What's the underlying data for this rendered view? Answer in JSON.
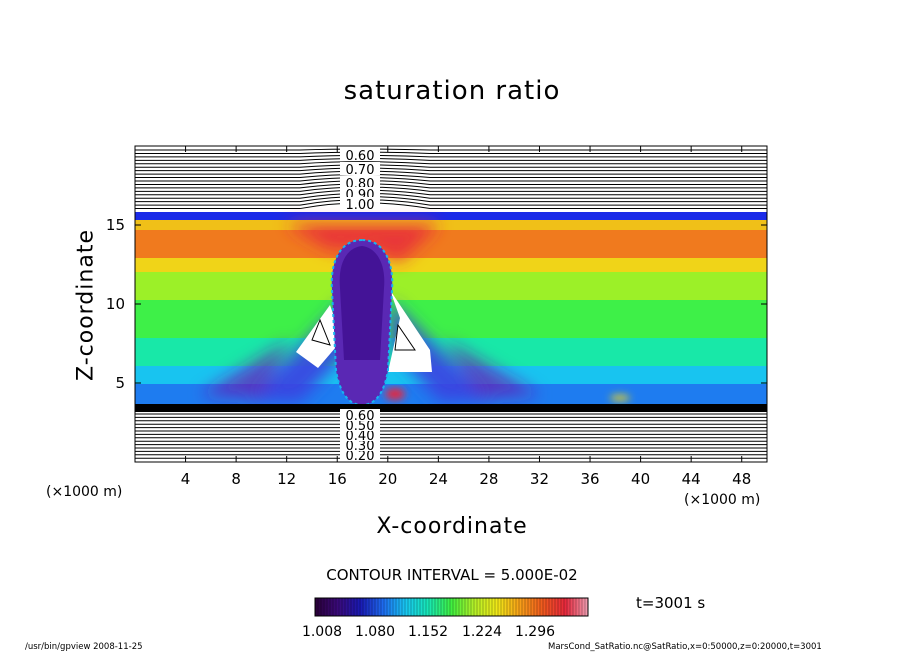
{
  "chart_data": {
    "type": "heatmap",
    "title": "saturation ratio",
    "xlabel": "X-coordinate",
    "ylabel": "Z-coordinate",
    "x_unit": "(×1000 m)",
    "xlim": [
      0,
      50
    ],
    "ylim": [
      0,
      20
    ],
    "x_ticks": [
      4,
      8,
      12,
      16,
      20,
      24,
      28,
      32,
      36,
      40,
      44,
      48
    ],
    "y_ticks": [
      5,
      10,
      15
    ],
    "contour_interval": "CONTOUR INTERVAL = 5.000E-02",
    "contour_labels_upper": [
      "0.60",
      "0.70",
      "0.80",
      "0.90",
      "1.00"
    ],
    "contour_labels_lower": [
      "0.20",
      "0.30",
      "0.40",
      "0.50",
      "0.60"
    ],
    "colorbar": {
      "ticks": [
        "1.008",
        "1.080",
        "1.152",
        "1.224",
        "1.296"
      ],
      "colors": [
        "#2a0038",
        "#3a0a7a",
        "#1a1ab4",
        "#1e6cf0",
        "#18c8f0",
        "#18e8b4",
        "#40f040",
        "#b4f028",
        "#f0e818",
        "#f8a018",
        "#f05a1e",
        "#e8283c",
        "#f0a0b4"
      ]
    },
    "time": "t=3001 s"
  },
  "footer": {
    "left": "/usr/bin/gpview   2008-11-25",
    "right": "MarsCond_SatRatio.nc@SatRatio,x=0:50000,z=0:20000,t=3001"
  }
}
